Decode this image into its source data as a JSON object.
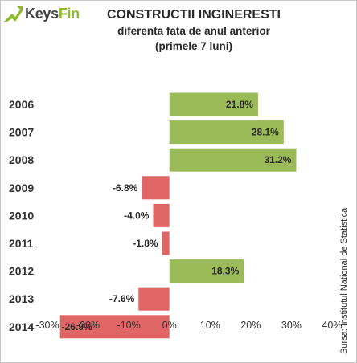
{
  "brand": {
    "keys": "Keys",
    "fin": "Fin",
    "accent": "#8dbb2d"
  },
  "title": "CONSTRUCTII INGINERESTI",
  "subtitle_line1": "diferenta fata de anul anterior",
  "subtitle_line2": "(primele 7 luni)",
  "source": "Sursa: Institutul National de Statistica",
  "chart_data": {
    "type": "bar",
    "orientation": "horizontal",
    "categories": [
      "2006",
      "2007",
      "2008",
      "2009",
      "2010",
      "2011",
      "2012",
      "2013",
      "2014"
    ],
    "values": [
      21.8,
      28.1,
      31.2,
      -6.8,
      -4.0,
      -1.8,
      18.3,
      -7.6,
      -26.9
    ],
    "data_labels": [
      "21.8%",
      "28.1%",
      "31.2%",
      "-6.8%",
      "-4.0%",
      "-1.8%",
      "18.3%",
      "-7.6%",
      "-26.9%"
    ],
    "xlim": [
      -30,
      40
    ],
    "xticks": [
      -30,
      -20,
      -10,
      0,
      10,
      20,
      30,
      40
    ],
    "xtick_labels": [
      "-30%",
      "-20%",
      "-10%",
      "0%",
      "10%",
      "20%",
      "30%",
      "40%"
    ],
    "positive_color": "#9bbb59",
    "negative_color": "#e06666",
    "grid": false,
    "legend": "none"
  }
}
